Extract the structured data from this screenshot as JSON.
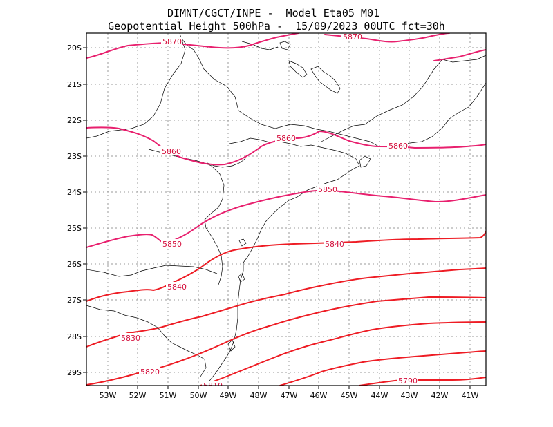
{
  "header": {
    "line1": "DIMNT/CGCT/INPE -  Model Eta05_M01_",
    "line2": "Geopotential Height 500hPa -  15/09/2023 00UTC fct=30h"
  },
  "map": {
    "lat_labels": [
      "20S",
      "21S",
      "22S",
      "23S",
      "24S",
      "25S",
      "26S",
      "27S",
      "28S",
      "29S"
    ],
    "lon_labels": [
      "53W",
      "52W",
      "51W",
      "50W",
      "49W",
      "48W",
      "47W",
      "46W",
      "45W",
      "44W",
      "43W",
      "42W",
      "41W"
    ],
    "contour_labels": {
      "c5870_a": "5870",
      "c5870_b": "5870",
      "c5860_a": "5860",
      "c5860_b": "5860",
      "c5860_c": "5860",
      "c5850_a": "5850",
      "c5850_b": "5850",
      "c5840_a": "5840",
      "c5840_b": "5840",
      "c5830": "5830",
      "c5820": "5820",
      "c5810": "5810",
      "c5790": "5790"
    },
    "colors": {
      "contour_high": "#e8206e",
      "contour_low": "#ee1c24",
      "label": "#d40f3c",
      "coast": "#000000",
      "grid": "#9a9a9a"
    }
  }
}
